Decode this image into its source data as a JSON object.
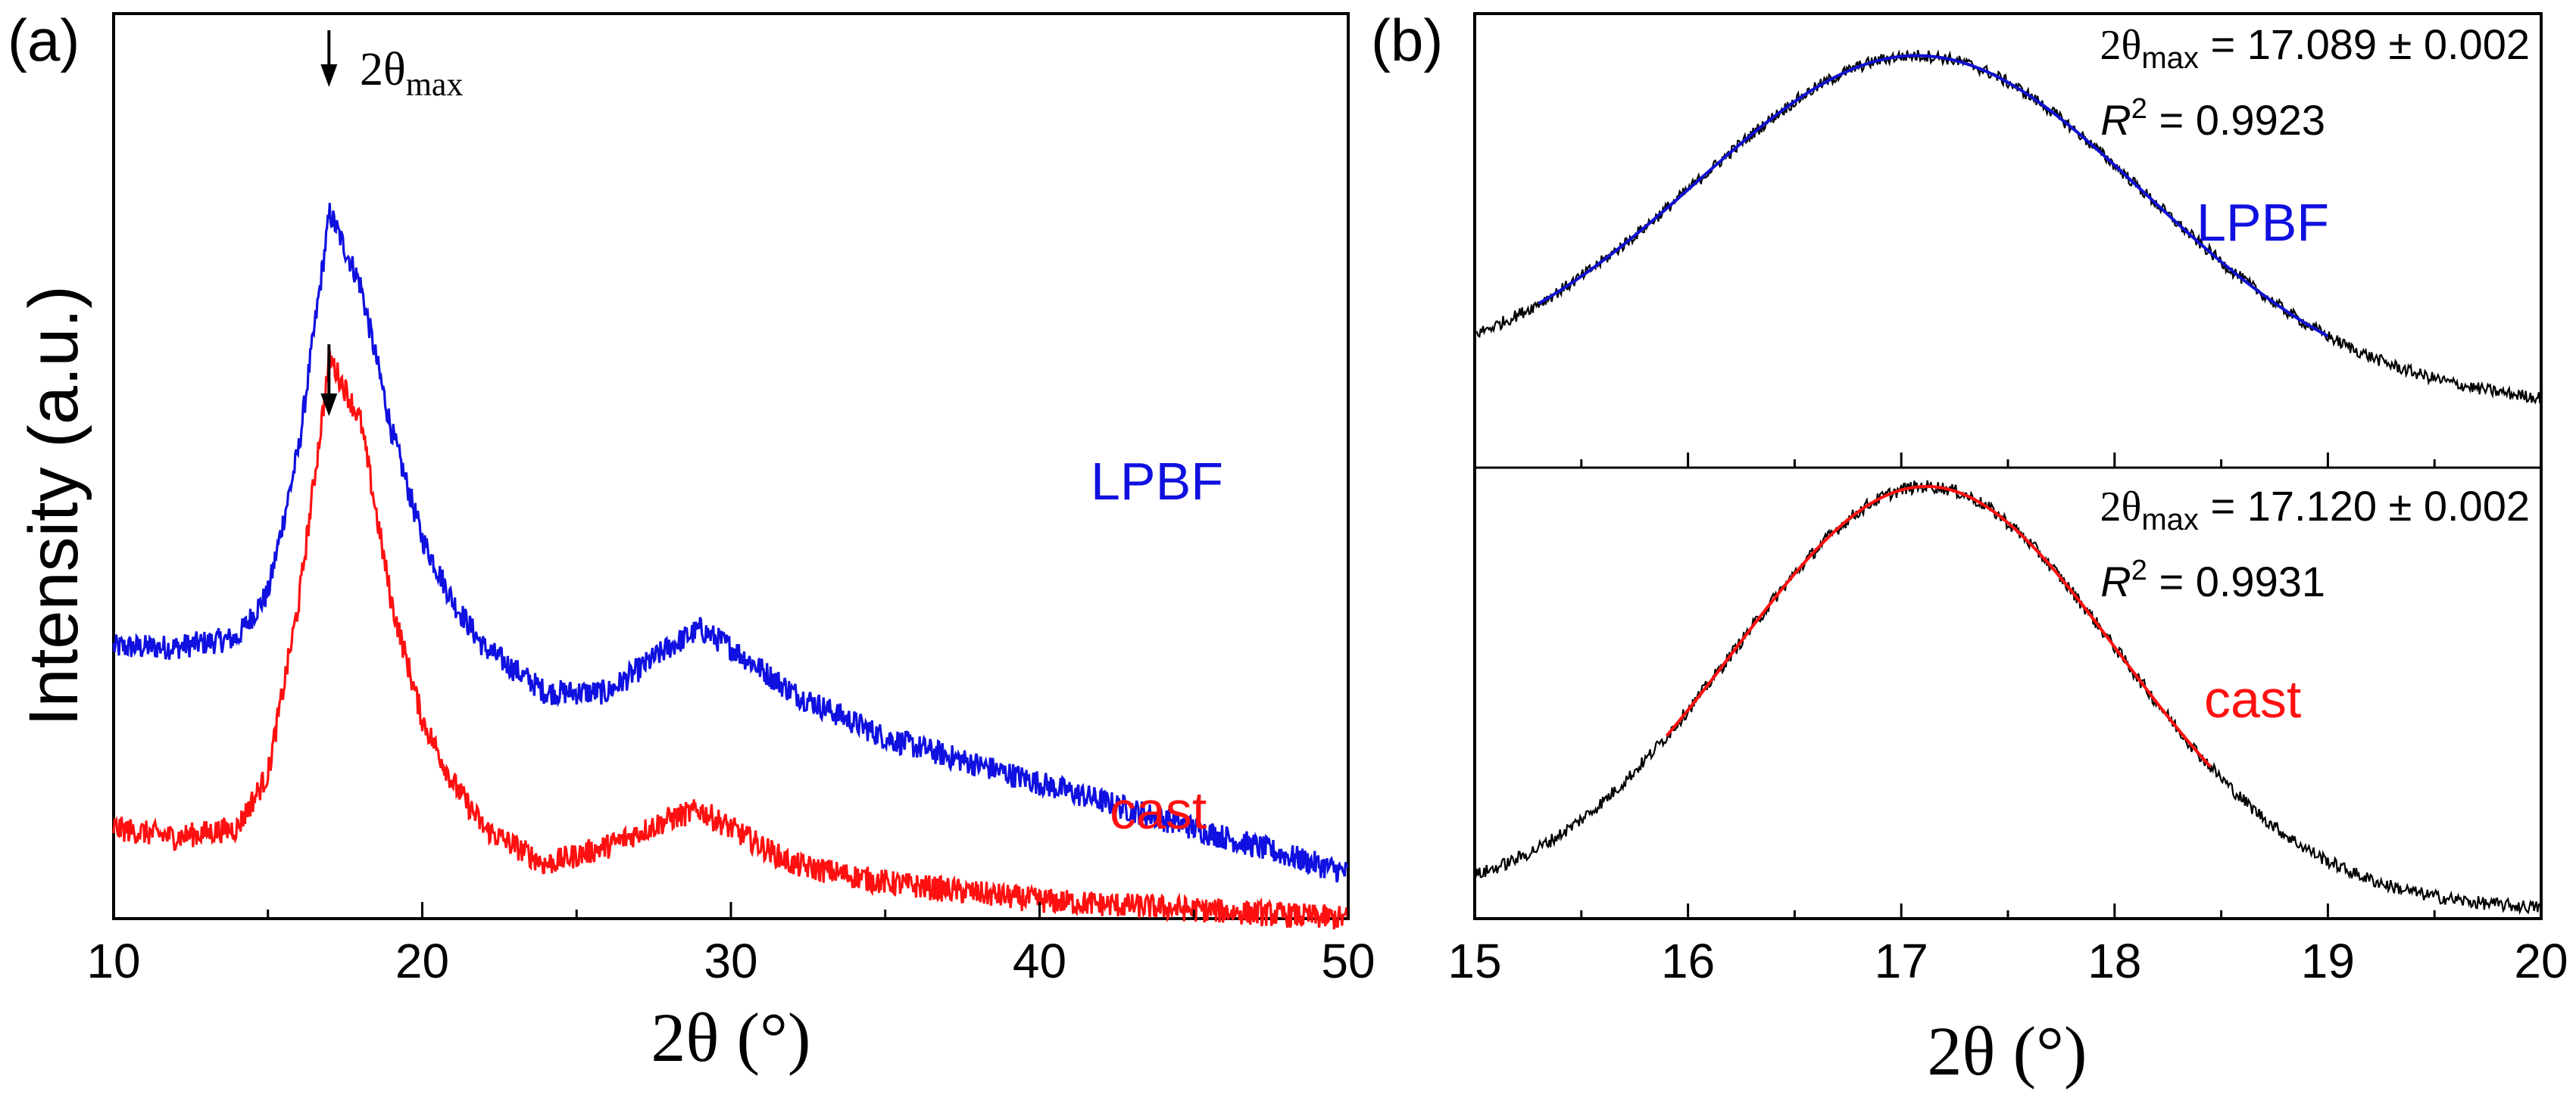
{
  "chart_data": [
    {
      "panel": "a",
      "type": "line",
      "panel_label": "(a)",
      "xlabel": "2θ (°)",
      "ylabel": "Intensity (a.u.)",
      "xlim": [
        10,
        50
      ],
      "xticks": [
        "10",
        "20",
        "30",
        "40",
        "50"
      ],
      "yticks_labeled": false,
      "annotation": {
        "text_prefix": "2θ",
        "text_sub": "max",
        "arrows_at_x": [
          17.1,
          17.1
        ]
      },
      "series": [
        {
          "name": "LPBF",
          "color": "#1010e0",
          "label": "LPBF",
          "baseline_shape_x": [
            10,
            12,
            14,
            15,
            16,
            17,
            18,
            19,
            20,
            21,
            22,
            24,
            26,
            28,
            29,
            30,
            32,
            35,
            40,
            45,
            50
          ],
          "relative_intensity": [
            0.3,
            0.3,
            0.31,
            0.36,
            0.52,
            0.78,
            0.7,
            0.54,
            0.42,
            0.35,
            0.3,
            0.25,
            0.25,
            0.3,
            0.32,
            0.3,
            0.25,
            0.2,
            0.15,
            0.1,
            0.05
          ]
        },
        {
          "name": "cast",
          "color": "#ff1010",
          "label": "cast",
          "baseline_shape_x": [
            10,
            12,
            14,
            15,
            16,
            17,
            18,
            19,
            20,
            21,
            22,
            24,
            26,
            28,
            29,
            30,
            32,
            35,
            40,
            45,
            50
          ],
          "relative_intensity": [
            0.1,
            0.09,
            0.1,
            0.16,
            0.35,
            0.62,
            0.55,
            0.35,
            0.22,
            0.15,
            0.1,
            0.06,
            0.08,
            0.11,
            0.12,
            0.1,
            0.06,
            0.04,
            0.02,
            0.01,
            0.0
          ]
        }
      ]
    },
    {
      "panel": "b",
      "type": "line",
      "panel_label": "(b)",
      "xlabel": "2θ (°)",
      "xlim": [
        15,
        20
      ],
      "xticks": [
        "15",
        "16",
        "17",
        "18",
        "19",
        "20"
      ],
      "subplots": [
        {
          "name": "LPBF",
          "label": "LPBF",
          "label_color": "#1010e0",
          "fit_color": "#1010d0",
          "two_theta_max": "17.089 ± 0.002",
          "r_squared": "0.9923",
          "fit_range": [
            15.3,
            19.0
          ],
          "peak_center": 17.089,
          "peak_sigma": 1.05,
          "data_range": [
            15.0,
            20.0
          ]
        },
        {
          "name": "cast",
          "label": "cast",
          "label_color": "#ff1010",
          "fit_color": "#ff1010",
          "two_theta_max": "17.120 ± 0.002",
          "r_squared": "0.9931",
          "fit_range": [
            15.9,
            18.45
          ],
          "peak_center": 17.12,
          "peak_sigma": 0.9,
          "data_range": [
            15.0,
            20.0
          ]
        }
      ]
    }
  ]
}
